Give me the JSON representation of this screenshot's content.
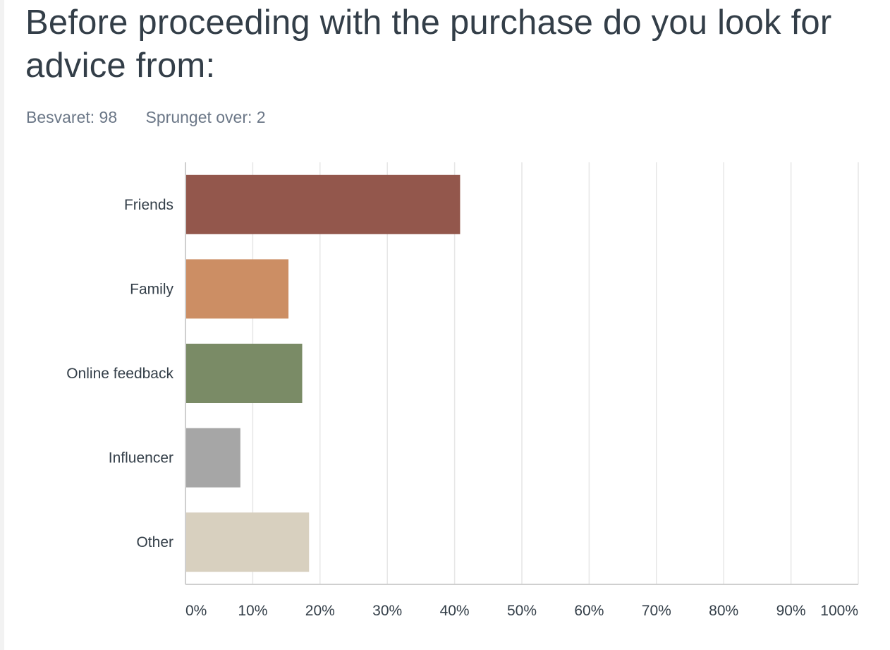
{
  "question": {
    "title": "Before proceeding with the purchase do you look for advice from:",
    "answered_label": "Besvaret: 98",
    "skipped_label": "Sprunget over: 2"
  },
  "chart_data": {
    "type": "bar",
    "orientation": "horizontal",
    "title": "Before proceeding with the purchase do you look for advice from:",
    "xlabel": "",
    "ylabel": "",
    "categories": [
      "Friends",
      "Family",
      "Online feedback",
      "Influencer",
      "Other"
    ],
    "values": [
      40.82,
      15.31,
      17.35,
      8.16,
      18.37
    ],
    "colors": [
      "#93574c",
      "#cc8e64",
      "#7a8b66",
      "#a6a6a6",
      "#d8d0bf"
    ],
    "xlim": [
      0,
      100
    ],
    "x_ticks": [
      "0%",
      "10%",
      "20%",
      "30%",
      "40%",
      "50%",
      "60%",
      "70%",
      "80%",
      "90%",
      "100%"
    ],
    "grid": true,
    "legend": "none"
  }
}
